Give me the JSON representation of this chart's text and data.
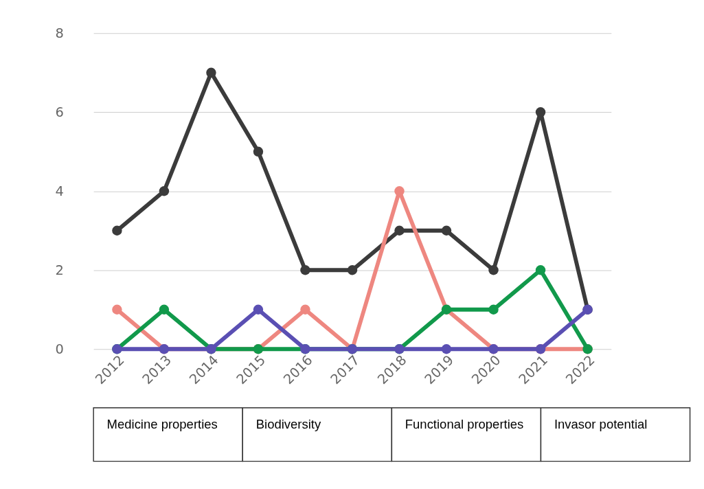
{
  "chart_data": {
    "type": "line",
    "categories": [
      "2012",
      "2013",
      "2014",
      "2015",
      "2016",
      "2017",
      "2018",
      "2019",
      "2020",
      "2021",
      "2022"
    ],
    "series": [
      {
        "color": "#3b3b3b",
        "values": [
          3,
          4,
          7,
          5,
          2,
          2,
          3,
          3,
          2,
          6,
          1
        ]
      },
      {
        "color": "#ee8780",
        "values": [
          1,
          0,
          0,
          0,
          1,
          0,
          4,
          1,
          0,
          0,
          0
        ]
      },
      {
        "color": "#11994b",
        "values": [
          0,
          1,
          0,
          0,
          0,
          0,
          0,
          1,
          1,
          2,
          0
        ]
      },
      {
        "color": "#5a4fb3",
        "values": [
          0,
          0,
          0,
          1,
          0,
          0,
          0,
          0,
          0,
          0,
          1
        ]
      }
    ],
    "ylim": [
      0,
      8
    ],
    "yticks": [
      0,
      2,
      4,
      6,
      8
    ],
    "grid": "y",
    "marker": "circle",
    "line_style": "solid",
    "annotations": [
      "Medicine properties",
      "Biodiversity",
      "Functional properties",
      "Invasor potential"
    ]
  }
}
